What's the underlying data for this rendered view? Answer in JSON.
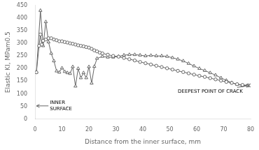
{
  "chart_data": {
    "type": "line",
    "xlabel": "Distance from the inner surface, mm",
    "ylabel": "Elastic KI, MPam0.5",
    "xlim": [
      0,
      80
    ],
    "ylim": [
      0,
      450
    ],
    "xticks": [
      0,
      10,
      20,
      30,
      40,
      50,
      60,
      70,
      80
    ],
    "yticks": [
      0,
      50,
      100,
      150,
      200,
      250,
      300,
      350,
      400,
      450
    ],
    "grid": false,
    "series": [
      {
        "color": "#666666",
        "marker": "circle",
        "x": [
          0.5,
          1.5,
          2,
          2.5,
          3,
          4,
          5,
          6,
          7,
          8,
          9,
          10,
          11,
          12,
          13,
          14,
          15,
          16,
          17,
          18,
          19,
          20,
          21,
          22,
          23,
          24,
          25,
          27,
          29,
          31,
          33,
          35,
          37,
          39,
          41,
          43,
          45,
          47,
          49,
          51,
          53,
          55,
          57,
          59,
          61,
          63,
          65,
          67,
          69,
          71,
          73,
          75,
          77,
          79,
          80
        ],
        "values": [
          185,
          290,
          335,
          295,
          310,
          315,
          320,
          320,
          315,
          312,
          308,
          308,
          305,
          303,
          300,
          298,
          295,
          292,
          290,
          288,
          285,
          283,
          278,
          272,
          268,
          263,
          260,
          255,
          250,
          247,
          242,
          237,
          232,
          226,
          221,
          216,
          211,
          206,
          201,
          196,
          191,
          186,
          181,
          176,
          171,
          167,
          162,
          157,
          152,
          147,
          143,
          138,
          135,
          133,
          133
        ]
      },
      {
        "color": "#666666",
        "marker": "triangle",
        "x": [
          0.5,
          2,
          3,
          4,
          5,
          6,
          7,
          8,
          9,
          10,
          11,
          12,
          13,
          14,
          15,
          16,
          17,
          18,
          19,
          20,
          21,
          22,
          23,
          25,
          27,
          29,
          31,
          33,
          35,
          37,
          39,
          41,
          43,
          45,
          47,
          49,
          51,
          53,
          55,
          57,
          59,
          61,
          63,
          65,
          67,
          69,
          71,
          73,
          75,
          77,
          79,
          80
        ],
        "values": [
          185,
          430,
          290,
          385,
          305,
          260,
          230,
          190,
          185,
          202,
          188,
          183,
          180,
          207,
          130,
          200,
          163,
          183,
          163,
          207,
          142,
          208,
          240,
          248,
          245,
          245,
          248,
          253,
          255,
          255,
          253,
          250,
          252,
          250,
          250,
          248,
          243,
          237,
          230,
          220,
          210,
          200,
          192,
          183,
          174,
          163,
          153,
          144,
          137,
          133,
          133,
          133
        ]
      }
    ],
    "annotations": [
      "INNER\nSURFACE",
      "DEEPEST POINT OF CRACK"
    ]
  }
}
